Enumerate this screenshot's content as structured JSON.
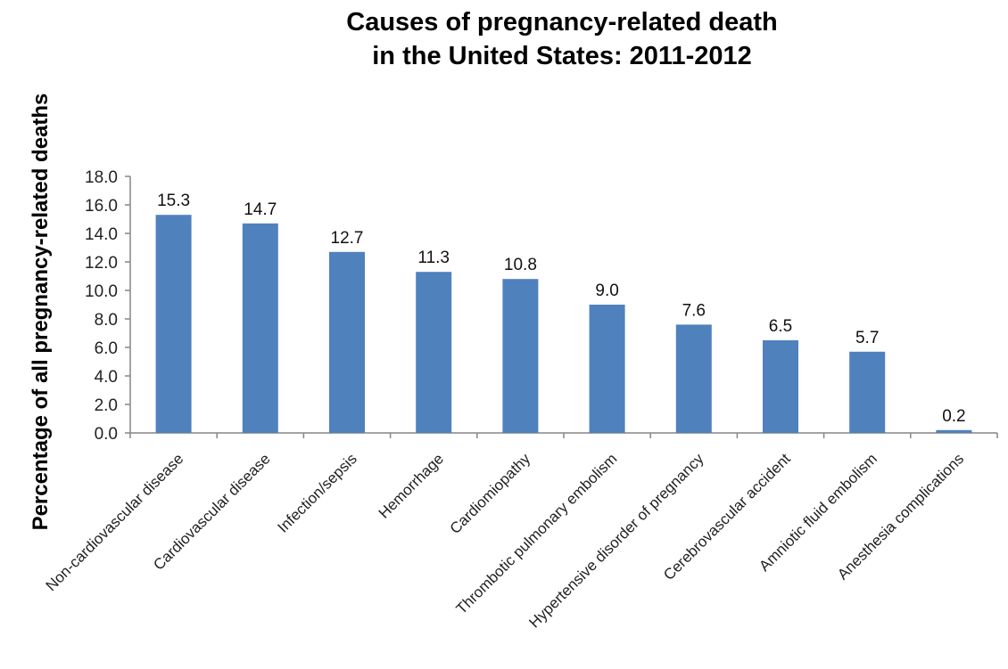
{
  "chart_data": {
    "type": "bar",
    "title_lines": [
      "Causes of pregnancy-related death",
      "in the United States: 2011-2012"
    ],
    "xlabel": "",
    "ylabel": "Percentage of all pregnancy-related deaths",
    "categories": [
      "Non-cardiovascular disease",
      "Cardiovascular disease",
      "Infection/sepsis",
      "Hemorrhage",
      "Cardiomiopathy",
      "Thrombotic pulmonary embolism",
      "Hypertensive disorder of pregnancy",
      "Cerebrovascular accident",
      "Amniotic fluid embolism",
      "Anesthesia complications"
    ],
    "values": [
      15.3,
      14.7,
      12.7,
      11.3,
      10.8,
      9.0,
      7.6,
      6.5,
      5.7,
      0.2
    ],
    "data_labels": [
      "15.3",
      "14.7",
      "12.7",
      "11.3",
      "10.8",
      "9.0",
      "7.6",
      "6.5",
      "5.7",
      "0.2"
    ],
    "ylim": [
      0,
      18
    ],
    "yticks": [
      "0.0",
      "2.0",
      "4.0",
      "6.0",
      "8.0",
      "10.0",
      "12.0",
      "14.0",
      "16.0",
      "18.0"
    ],
    "bar_color": "#4F81BD",
    "grid": false,
    "legend": "none"
  }
}
